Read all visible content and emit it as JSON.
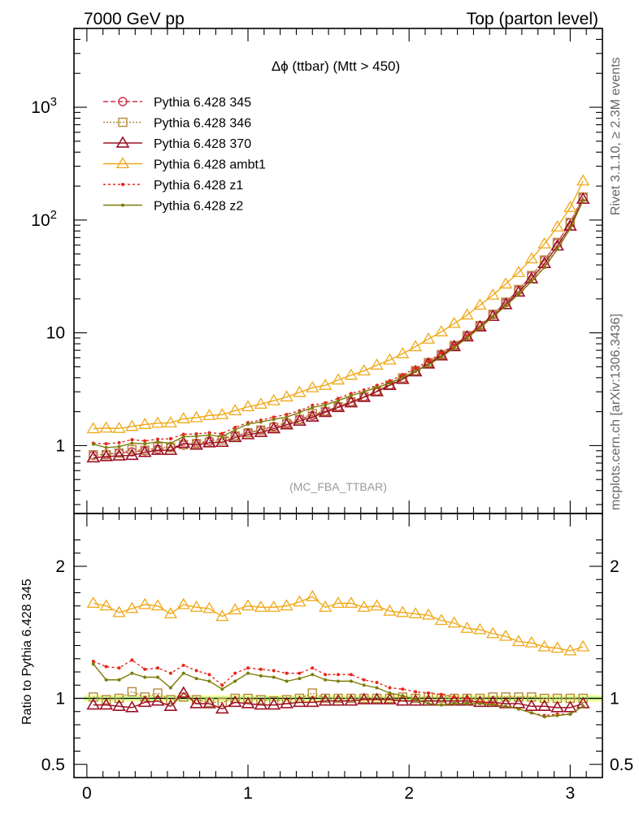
{
  "header": {
    "left": "7000 GeV pp",
    "right": "Top (parton level)"
  },
  "side_labels": {
    "rivet": "Rivet 3.1.10, ≥ 2.3M events",
    "mcplots": "mcplots.cern.ch [arXiv:1306.3436]"
  },
  "chart_data": [
    {
      "type": "line",
      "title": "Δϕ (ttbar) (Mtt > 450)",
      "annotation": "(MC_FBA_TTBAR)",
      "ylog": true,
      "ylim": [
        0.25,
        5000
      ],
      "xlim": [
        -0.08,
        3.2
      ],
      "ytick_labels": [
        "1",
        "10",
        "10^2",
        "10^3"
      ],
      "legend_placement": "top-left",
      "x": [
        0.04,
        0.12,
        0.2,
        0.28,
        0.36,
        0.44,
        0.52,
        0.6,
        0.68,
        0.76,
        0.84,
        0.92,
        1.0,
        1.08,
        1.16,
        1.24,
        1.32,
        1.4,
        1.48,
        1.56,
        1.64,
        1.72,
        1.8,
        1.88,
        1.96,
        2.04,
        2.12,
        2.2,
        2.28,
        2.36,
        2.44,
        2.52,
        2.6,
        2.68,
        2.76,
        2.84,
        2.92,
        3.0,
        3.08
      ],
      "series": [
        {
          "name": "Pythia 6.428 345",
          "color": "#c8324b",
          "dash": "6,3",
          "marker": "circle",
          "values": [
            0.82,
            0.84,
            0.86,
            0.88,
            0.9,
            0.93,
            0.97,
            1.01,
            1.05,
            1.1,
            1.16,
            1.22,
            1.3,
            1.38,
            1.48,
            1.59,
            1.71,
            1.85,
            2.02,
            2.22,
            2.45,
            2.72,
            3.05,
            3.45,
            3.95,
            4.6,
            5.4,
            6.4,
            7.7,
            9.4,
            11.6,
            14.5,
            18.5,
            24,
            32,
            44,
            63,
            95,
            160
          ]
        },
        {
          "name": "Pythia 6.428 346",
          "color": "#b5893c",
          "dash": "2,2",
          "marker": "square",
          "values": [
            0.83,
            0.83,
            0.86,
            0.92,
            0.91,
            0.97,
            0.96,
            1.02,
            1.04,
            1.07,
            1.12,
            1.22,
            1.3,
            1.37,
            1.45,
            1.57,
            1.71,
            1.92,
            2.01,
            2.21,
            2.45,
            2.71,
            3.05,
            3.44,
            3.98,
            4.62,
            5.44,
            6.41,
            7.72,
            9.45,
            11.6,
            14.6,
            18.7,
            24.2,
            32.2,
            44.2,
            63.3,
            95.2,
            160
          ]
        },
        {
          "name": "Pythia 6.428 370",
          "color": "#9c1025",
          "dash": "",
          "marker": "triangle",
          "values": [
            0.78,
            0.8,
            0.81,
            0.82,
            0.87,
            0.91,
            0.91,
            1.05,
            1.01,
            1.06,
            1.07,
            1.18,
            1.25,
            1.31,
            1.41,
            1.53,
            1.65,
            1.79,
            1.97,
            2.18,
            2.4,
            2.68,
            3.01,
            3.42,
            3.87,
            4.52,
            5.3,
            6.26,
            7.55,
            9.21,
            11.3,
            14.0,
            17.8,
            23.0,
            30.2,
            41.2,
            58.9,
            88.5,
            153
          ]
        },
        {
          "name": "Pythia 6.428 ambt1",
          "color": "#f0a818",
          "dash": "",
          "marker": "triangle-open",
          "values": [
            1.41,
            1.43,
            1.42,
            1.48,
            1.54,
            1.58,
            1.59,
            1.73,
            1.77,
            1.85,
            1.88,
            2.04,
            2.21,
            2.33,
            2.5,
            2.7,
            2.96,
            3.26,
            3.42,
            3.82,
            4.21,
            4.6,
            5.17,
            5.74,
            6.52,
            7.54,
            8.8,
            10.2,
            12.1,
            14.4,
            17.6,
            21.6,
            27.1,
            34.3,
            45.3,
            61.4,
            86.8,
            129,
            222
          ]
        },
        {
          "name": "Pythia 6.428 z1",
          "color": "#e8261b",
          "dash": "3,3",
          "marker": "dot",
          "values": [
            1.05,
            1.04,
            1.06,
            1.13,
            1.1,
            1.14,
            1.15,
            1.26,
            1.27,
            1.3,
            1.28,
            1.45,
            1.6,
            1.68,
            1.79,
            1.89,
            2.04,
            2.28,
            2.39,
            2.62,
            2.9,
            3.11,
            3.42,
            3.74,
            4.24,
            4.85,
            5.6,
            6.6,
            7.8,
            9.4,
            11.3,
            13.9,
            17.4,
            22.0,
            28.5,
            38.5,
            55.5,
            84.0,
            150
          ]
        },
        {
          "name": "Pythia 6.428 z2",
          "color": "#7d7c0a",
          "dash": "",
          "marker": "dot",
          "values": [
            1.03,
            0.96,
            0.98,
            1.05,
            1.04,
            1.08,
            1.05,
            1.2,
            1.21,
            1.24,
            1.2,
            1.38,
            1.55,
            1.62,
            1.71,
            1.79,
            1.97,
            2.18,
            2.3,
            2.5,
            2.78,
            3.0,
            3.28,
            3.58,
            4.03,
            4.55,
            5.2,
            6.1,
            7.4,
            9.0,
            11.1,
            13.8,
            17.4,
            22.0,
            28.5,
            38.0,
            55.0,
            84.0,
            150
          ]
        }
      ]
    },
    {
      "type": "line",
      "ylabel": "Ratio to Pythia 6.428 345",
      "ylim": [
        0.4,
        2.4
      ],
      "xlim": [
        -0.08,
        3.2
      ],
      "ytick_labels": [
        "0.5",
        "1",
        "2"
      ],
      "xtick_labels": [
        "0",
        "1",
        "2",
        "3"
      ],
      "reference_band": {
        "low": 0.985,
        "high": 1.015,
        "inner_color": "#ccff99",
        "outer_color": "#ffff99"
      },
      "x": [
        0.04,
        0.12,
        0.2,
        0.28,
        0.36,
        0.44,
        0.52,
        0.6,
        0.68,
        0.76,
        0.84,
        0.92,
        1.0,
        1.08,
        1.16,
        1.24,
        1.32,
        1.4,
        1.48,
        1.56,
        1.64,
        1.72,
        1.8,
        1.88,
        1.96,
        2.04,
        2.12,
        2.2,
        2.28,
        2.36,
        2.44,
        2.52,
        2.6,
        2.68,
        2.76,
        2.84,
        2.92,
        3.0,
        3.08
      ],
      "series": [
        {
          "name": "Pythia 6.428 346",
          "color": "#b5893c",
          "values": [
            1.01,
            0.99,
            1.0,
            1.05,
            1.01,
            1.04,
            0.99,
            1.01,
            0.99,
            0.97,
            0.97,
            1.0,
            1.0,
            0.99,
            0.98,
            0.99,
            1.0,
            1.04,
            1.0,
            1.0,
            1.0,
            1.0,
            1.0,
            1.0,
            1.01,
            1.0,
            1.01,
            1.0,
            1.0,
            1.0,
            1.0,
            1.01,
            1.01,
            1.01,
            1.01,
            1.0,
            1.0,
            1.0,
            1.0
          ]
        },
        {
          "name": "Pythia 6.428 370",
          "color": "#9c1025",
          "values": [
            0.95,
            0.95,
            0.94,
            0.93,
            0.97,
            0.98,
            0.94,
            1.04,
            0.96,
            0.96,
            0.92,
            0.97,
            0.96,
            0.95,
            0.95,
            0.96,
            0.97,
            0.97,
            0.98,
            0.98,
            0.98,
            0.99,
            0.99,
            0.99,
            0.98,
            0.98,
            0.98,
            0.98,
            0.98,
            0.98,
            0.97,
            0.97,
            0.96,
            0.96,
            0.94,
            0.94,
            0.93,
            0.93,
            0.96
          ]
        },
        {
          "name": "Pythia 6.428 ambt1",
          "color": "#f0a818",
          "values": [
            1.72,
            1.7,
            1.65,
            1.68,
            1.71,
            1.7,
            1.64,
            1.71,
            1.69,
            1.68,
            1.62,
            1.67,
            1.7,
            1.69,
            1.69,
            1.7,
            1.73,
            1.77,
            1.69,
            1.72,
            1.72,
            1.69,
            1.7,
            1.66,
            1.65,
            1.64,
            1.63,
            1.59,
            1.57,
            1.53,
            1.52,
            1.49,
            1.47,
            1.43,
            1.42,
            1.39,
            1.38,
            1.36,
            1.39
          ]
        },
        {
          "name": "Pythia 6.428 z1",
          "color": "#e8261b",
          "values": [
            1.28,
            1.24,
            1.23,
            1.29,
            1.22,
            1.23,
            1.19,
            1.25,
            1.21,
            1.18,
            1.1,
            1.19,
            1.23,
            1.22,
            1.21,
            1.19,
            1.19,
            1.23,
            1.18,
            1.18,
            1.18,
            1.14,
            1.12,
            1.08,
            1.07,
            1.05,
            1.04,
            1.03,
            1.01,
            1.0,
            0.97,
            0.96,
            0.94,
            0.92,
            0.89,
            0.87,
            0.88,
            0.88,
            0.94
          ]
        },
        {
          "name": "Pythia 6.428 z2",
          "color": "#7d7c0a",
          "values": [
            1.26,
            1.14,
            1.14,
            1.19,
            1.16,
            1.16,
            1.08,
            1.19,
            1.15,
            1.13,
            1.07,
            1.13,
            1.19,
            1.17,
            1.16,
            1.13,
            1.15,
            1.18,
            1.14,
            1.13,
            1.13,
            1.1,
            1.08,
            1.04,
            1.02,
            0.99,
            0.96,
            0.95,
            0.96,
            0.96,
            0.96,
            0.95,
            0.94,
            0.92,
            0.89,
            0.86,
            0.87,
            0.88,
            0.94
          ]
        }
      ]
    }
  ]
}
